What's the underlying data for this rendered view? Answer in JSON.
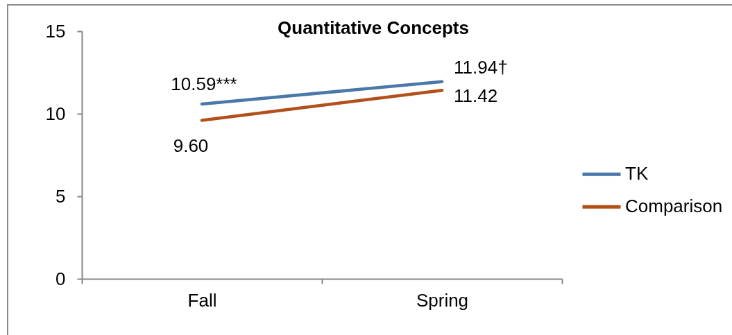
{
  "chart_data": {
    "type": "line",
    "title": "Quantitative Concepts",
    "categories": [
      "Fall",
      "Spring"
    ],
    "series": [
      {
        "name": "TK",
        "color": "#4a78a9",
        "values": [
          10.59,
          11.94
        ],
        "value_labels": [
          "10.59***",
          "11.94†"
        ]
      },
      {
        "name": "Comparison",
        "color": "#b24f1a",
        "values": [
          9.6,
          11.42
        ],
        "value_labels": [
          "9.60",
          "11.42"
        ]
      }
    ],
    "ylim": [
      0,
      15
    ],
    "yticks": [
      0,
      5,
      10,
      15
    ],
    "legend": "right"
  }
}
